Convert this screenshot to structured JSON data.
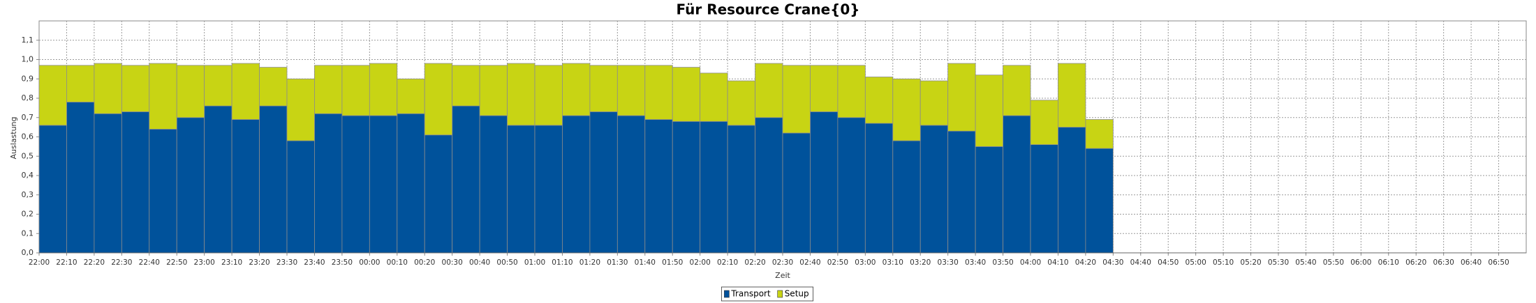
{
  "chart_data": {
    "type": "bar",
    "stacked": true,
    "title": "Für Resource Crane{0}",
    "x_label": "Zeit",
    "y_label": "Auslastung",
    "categories": [
      "22:00",
      "22:10",
      "22:20",
      "22:30",
      "22:40",
      "22:50",
      "23:00",
      "23:10",
      "23:20",
      "23:30",
      "23:40",
      "23:50",
      "00:00",
      "00:10",
      "00:20",
      "00:30",
      "00:40",
      "00:50",
      "01:00",
      "01:10",
      "01:20",
      "01:30",
      "01:40",
      "01:50",
      "02:00",
      "02:10",
      "02:20",
      "02:30",
      "02:40",
      "02:50",
      "03:00",
      "03:10",
      "03:20",
      "03:30",
      "03:40",
      "03:50",
      "04:00",
      "04:10",
      "04:20",
      "04:30",
      "04:40",
      "04:50",
      "05:00",
      "05:10",
      "05:20",
      "05:30",
      "05:40",
      "05:50",
      "06:00",
      "06:10",
      "06:20",
      "06:30",
      "06:40",
      "06:50"
    ],
    "series": [
      {
        "name": "Transport",
        "color": "#00529b",
        "values": [
          0.66,
          0.78,
          0.72,
          0.73,
          0.64,
          0.7,
          0.76,
          0.69,
          0.76,
          0.58,
          0.72,
          0.71,
          0.71,
          0.72,
          0.61,
          0.76,
          0.71,
          0.66,
          0.66,
          0.71,
          0.73,
          0.71,
          0.69,
          0.68,
          0.68,
          0.66,
          0.7,
          0.62,
          0.73,
          0.7,
          0.67,
          0.58,
          0.66,
          0.63,
          0.55,
          0.71,
          0.56,
          0.65,
          0.54,
          null,
          null,
          null,
          null,
          null,
          null,
          null,
          null,
          null,
          null,
          null,
          null,
          null,
          null,
          null
        ]
      },
      {
        "name": "Setup",
        "color": "#c8d414",
        "values": [
          0.31,
          0.19,
          0.26,
          0.24,
          0.34,
          0.27,
          0.21,
          0.29,
          0.2,
          0.32,
          0.25,
          0.26,
          0.27,
          0.18,
          0.37,
          0.21,
          0.26,
          0.32,
          0.31,
          0.27,
          0.24,
          0.26,
          0.28,
          0.28,
          0.25,
          0.23,
          0.28,
          0.35,
          0.24,
          0.27,
          0.24,
          0.32,
          0.23,
          0.35,
          0.37,
          0.26,
          0.23,
          0.33,
          0.15,
          null,
          null,
          null,
          null,
          null,
          null,
          null,
          null,
          null,
          null,
          null,
          null,
          null,
          null,
          null
        ]
      }
    ],
    "ylim": [
      0,
      1.2
    ],
    "yticks": [
      {
        "value": 0,
        "label": "0,0"
      },
      {
        "value": 0.1,
        "label": "0,1"
      },
      {
        "value": 0.2,
        "label": "0,2"
      },
      {
        "value": 0.3,
        "label": "0,3"
      },
      {
        "value": 0.4,
        "label": "0,4"
      },
      {
        "value": 0.5,
        "label": "0,5"
      },
      {
        "value": 0.6,
        "label": "0,6"
      },
      {
        "value": 0.7,
        "label": "0,7"
      },
      {
        "value": 0.8,
        "label": "0,8"
      },
      {
        "value": 0.9,
        "label": "0,9"
      },
      {
        "value": 1.0,
        "label": "1,0"
      },
      {
        "value": 1.1,
        "label": "1,1"
      }
    ],
    "grid": true,
    "legend": "bottom"
  }
}
